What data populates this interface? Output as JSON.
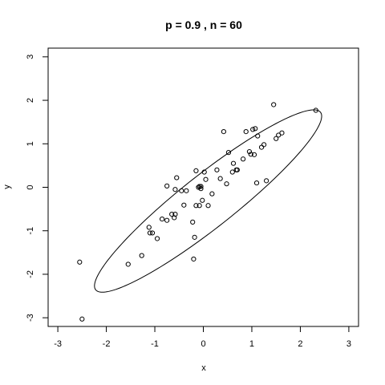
{
  "chart_data": {
    "type": "scatter",
    "title": "p = 0.9 , n = 60",
    "xlabel": "x",
    "ylabel": "y",
    "xlim": [
      -3.2,
      3.2
    ],
    "ylim": [
      -3.2,
      3.2
    ],
    "xticks": [
      -3,
      -2,
      -1,
      0,
      1,
      2,
      3
    ],
    "yticks": [
      -3,
      -2,
      -1,
      0,
      1,
      2,
      3
    ],
    "grid": false,
    "series": [
      {
        "points": [
          [
            -2.55,
            -1.72
          ],
          [
            -2.5,
            -3.03
          ],
          [
            -1.55,
            -1.77
          ],
          [
            -1.27,
            -1.57
          ],
          [
            -1.12,
            -0.92
          ],
          [
            -1.1,
            -1.05
          ],
          [
            -1.05,
            -1.05
          ],
          [
            -0.95,
            -1.18
          ],
          [
            -0.85,
            -0.73
          ],
          [
            -0.75,
            -0.76
          ],
          [
            -0.75,
            0.03
          ],
          [
            -0.65,
            -0.62
          ],
          [
            -0.6,
            -0.7
          ],
          [
            -0.58,
            -0.62
          ],
          [
            -0.58,
            -0.05
          ],
          [
            -0.55,
            0.22
          ],
          [
            -0.45,
            -0.08
          ],
          [
            -0.4,
            -0.41
          ],
          [
            -0.35,
            -0.08
          ],
          [
            -0.22,
            -0.8
          ],
          [
            -0.2,
            -1.65
          ],
          [
            -0.18,
            -1.15
          ],
          [
            -0.15,
            -0.42
          ],
          [
            -0.15,
            0.38
          ],
          [
            -0.1,
            0.0
          ],
          [
            -0.08,
            0.02
          ],
          [
            -0.08,
            -0.42
          ],
          [
            -0.05,
            -0.03
          ],
          [
            -0.05,
            0.02
          ],
          [
            -0.02,
            -0.3
          ],
          [
            0.02,
            0.35
          ],
          [
            0.05,
            0.18
          ],
          [
            0.1,
            -0.42
          ],
          [
            0.18,
            -0.15
          ],
          [
            0.28,
            0.4
          ],
          [
            0.35,
            0.2
          ],
          [
            0.42,
            1.28
          ],
          [
            0.48,
            0.08
          ],
          [
            0.52,
            0.8
          ],
          [
            0.6,
            0.35
          ],
          [
            0.62,
            0.55
          ],
          [
            0.68,
            0.4
          ],
          [
            0.7,
            0.4
          ],
          [
            0.82,
            0.65
          ],
          [
            0.88,
            1.28
          ],
          [
            0.95,
            0.82
          ],
          [
            0.98,
            0.76
          ],
          [
            1.02,
            1.33
          ],
          [
            1.05,
            0.75
          ],
          [
            1.07,
            1.35
          ],
          [
            1.1,
            0.1
          ],
          [
            1.12,
            1.18
          ],
          [
            1.2,
            0.92
          ],
          [
            1.25,
            0.98
          ],
          [
            1.3,
            0.15
          ],
          [
            1.45,
            1.9
          ],
          [
            1.5,
            1.12
          ],
          [
            1.55,
            1.2
          ],
          [
            1.62,
            1.25
          ],
          [
            2.32,
            1.77
          ]
        ]
      }
    ],
    "ellipse": {
      "center": [
        0.098,
        -0.316
      ],
      "rotation_deg": 41.6,
      "semi_axes": [
        3.089,
        0.582
      ]
    }
  }
}
